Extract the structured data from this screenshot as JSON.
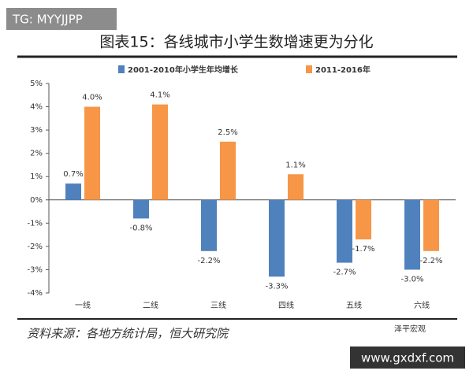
{
  "watermark_top": "TG: MYYJJPP",
  "watermark_bottom": "www.gxdxf.com",
  "logo_text": "泽平宏观",
  "chart_data": {
    "type": "bar",
    "title": "图表15：各线城市小学生数增速更为分化",
    "source": "资料来源：各地方统计局，恒大研究院",
    "categories": [
      "一线",
      "二线",
      "三线",
      "四线",
      "五线",
      "六线"
    ],
    "series": [
      {
        "name": "2001-2010年小学生年均增长",
        "color": "#4f81bd",
        "values": [
          0.7,
          -0.8,
          -2.2,
          -3.3,
          -2.7,
          -3.0
        ],
        "value_labels": [
          "0.7%",
          "-0.8%",
          "-2.2%",
          "-3.3%",
          "-2.7%",
          "-3.0%"
        ]
      },
      {
        "name": "2011-2016年",
        "color": "#f79646",
        "values": [
          4.0,
          4.1,
          2.5,
          1.1,
          -1.7,
          -2.2
        ],
        "value_labels": [
          "4.0%",
          "4.1%",
          "2.5%",
          "1.1%",
          "-1.7%",
          "-2.2%"
        ]
      }
    ],
    "ylim": [
      -4,
      5
    ],
    "yticks": [
      {
        "value": -4,
        "label": "-4%"
      },
      {
        "value": -3,
        "label": "-3%"
      },
      {
        "value": -2,
        "label": "-2%"
      },
      {
        "value": -1,
        "label": "-1%"
      },
      {
        "value": 0,
        "label": "0%"
      },
      {
        "value": 1,
        "label": "1%"
      },
      {
        "value": 2,
        "label": "2%"
      },
      {
        "value": 3,
        "label": "3%"
      },
      {
        "value": 4,
        "label": "4%"
      },
      {
        "value": 5,
        "label": "5%"
      }
    ],
    "grid": false,
    "legend": "top"
  }
}
